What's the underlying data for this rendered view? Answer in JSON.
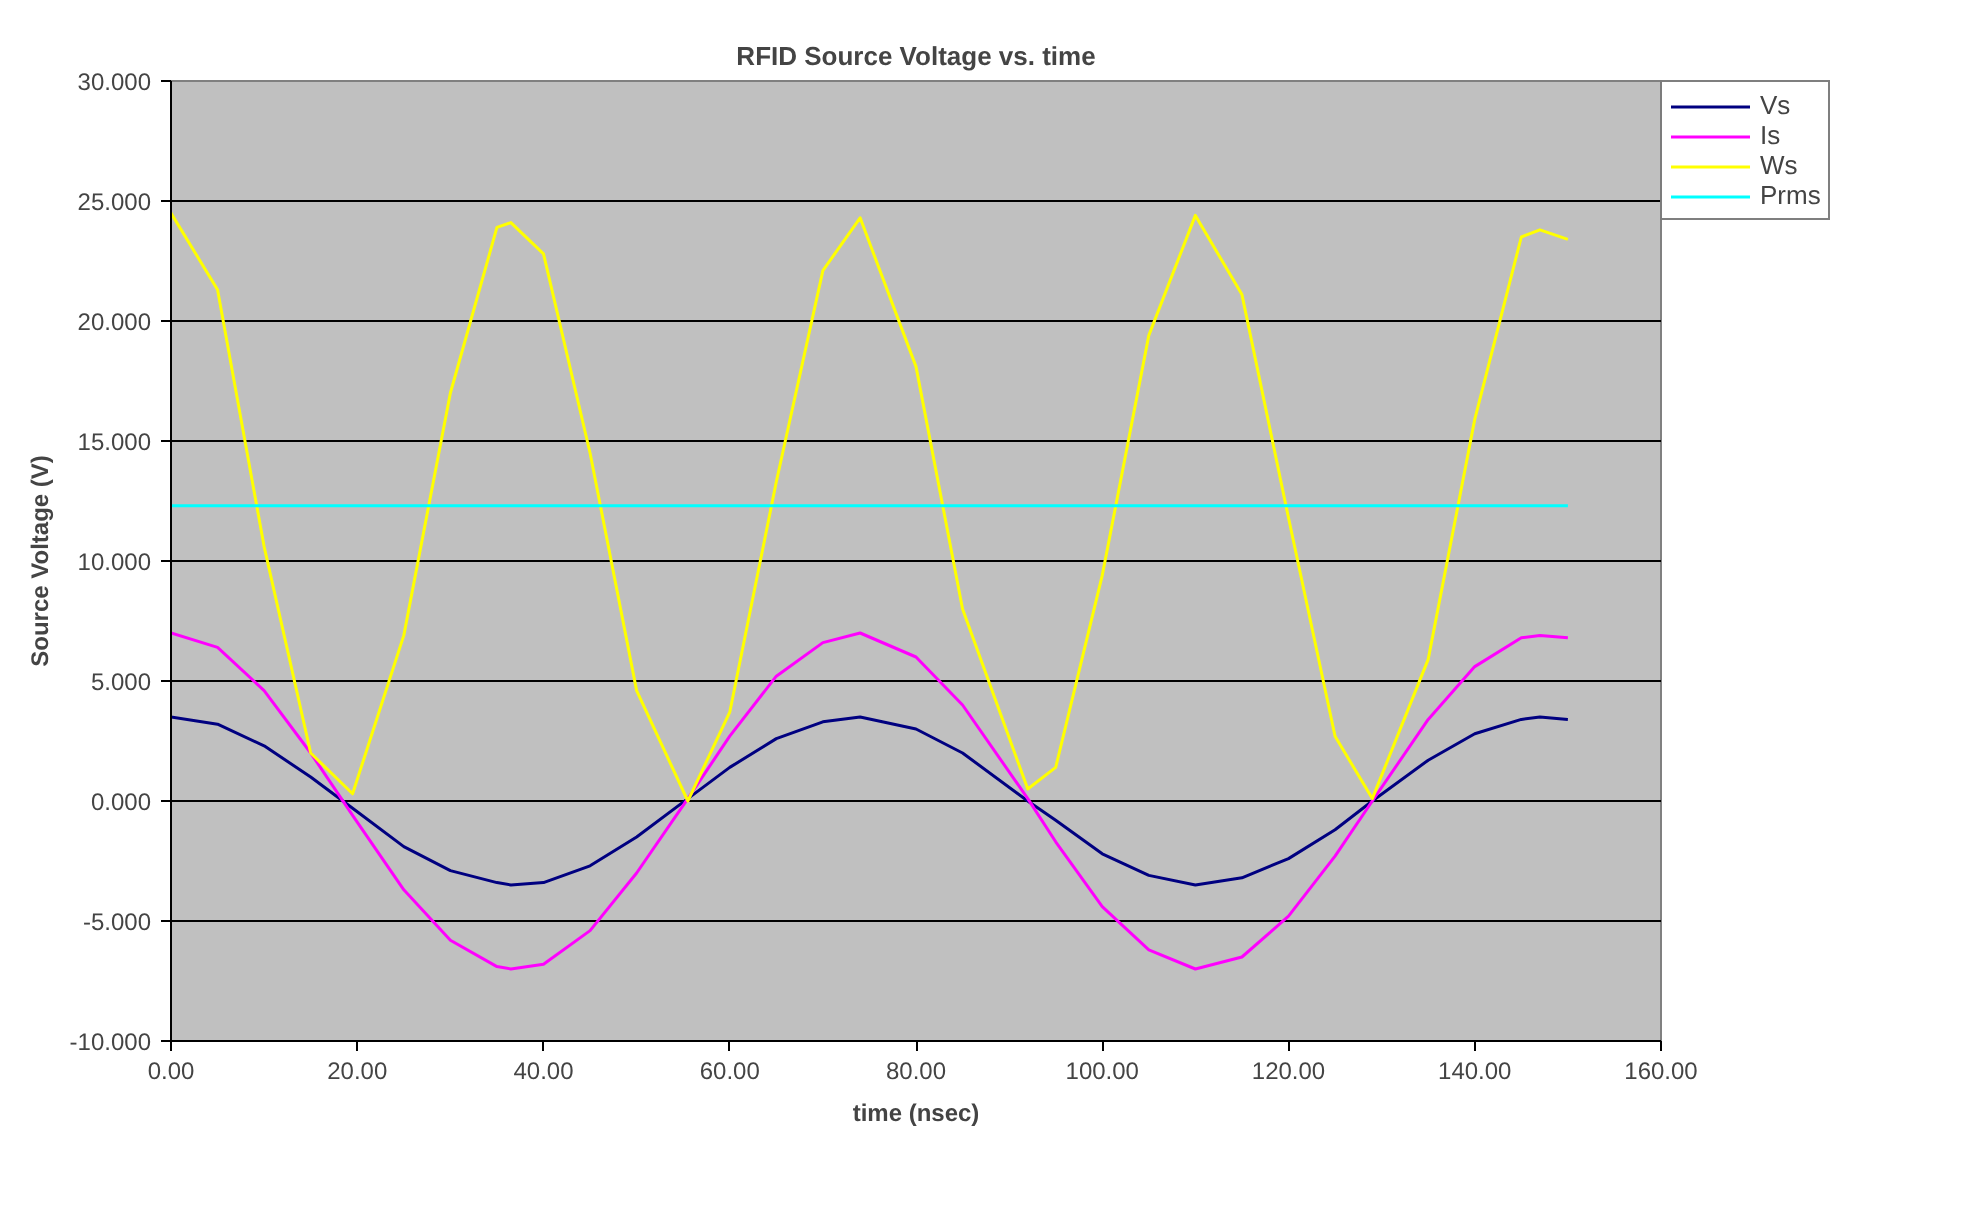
{
  "chart_data": {
    "type": "line",
    "title": "RFID Source Voltage vs. time",
    "xlabel": "time (nsec)",
    "ylabel": "Source Voltage (V)",
    "x": [
      0,
      5,
      10,
      15,
      19.5,
      25,
      30,
      35,
      36.5,
      40,
      45,
      50,
      55.5,
      60,
      65,
      70,
      74,
      80,
      85,
      92,
      95,
      100,
      105,
      110,
      115,
      120,
      125,
      129,
      135,
      140,
      145,
      147,
      150
    ],
    "series": [
      {
        "name": "Vs",
        "color": "#000080",
        "values": [
          3.5,
          3.2,
          2.3,
          1.0,
          -0.3,
          -1.9,
          -2.9,
          -3.4,
          -3.5,
          -3.4,
          -2.7,
          -1.5,
          0.1,
          1.4,
          2.6,
          3.3,
          3.5,
          3.0,
          2.0,
          0.0,
          -0.8,
          -2.2,
          -3.1,
          -3.5,
          -3.2,
          -2.4,
          -1.2,
          0.0,
          1.7,
          2.8,
          3.4,
          3.5,
          3.4
        ]
      },
      {
        "name": "Is",
        "color": "#ff00ff",
        "values": [
          7.0,
          6.4,
          4.6,
          2.0,
          -0.6,
          -3.7,
          -5.8,
          -6.9,
          -7.0,
          -6.8,
          -5.4,
          -3.0,
          0.1,
          2.7,
          5.2,
          6.6,
          7.0,
          6.0,
          4.0,
          0.1,
          -1.7,
          -4.4,
          -6.2,
          -7.0,
          -6.5,
          -4.8,
          -2.3,
          0.0,
          3.4,
          5.6,
          6.8,
          6.9,
          6.8
        ]
      },
      {
        "name": "Ws",
        "color": "#ffff00",
        "values": [
          24.5,
          21.3,
          10.6,
          2.0,
          0.3,
          6.9,
          17.0,
          23.9,
          24.1,
          22.8,
          14.5,
          4.6,
          0.0,
          3.7,
          13.3,
          22.1,
          24.3,
          18.1,
          8.0,
          0.5,
          1.4,
          9.4,
          19.4,
          24.4,
          21.1,
          11.8,
          2.7,
          0.1,
          5.9,
          15.9,
          23.5,
          23.8,
          23.4
        ]
      },
      {
        "name": "Prms",
        "color": "#00ffff",
        "x": [
          0,
          150
        ],
        "values": [
          12.3,
          12.3
        ]
      }
    ],
    "xlim": [
      0,
      160
    ],
    "ylim": [
      -10,
      30
    ],
    "xticks": [
      {
        "value": 0,
        "label": "0.00"
      },
      {
        "value": 20,
        "label": "20.00"
      },
      {
        "value": 40,
        "label": "40.00"
      },
      {
        "value": 60,
        "label": "60.00"
      },
      {
        "value": 80,
        "label": "80.00"
      },
      {
        "value": 100,
        "label": "100.00"
      },
      {
        "value": 120,
        "label": "120.00"
      },
      {
        "value": 140,
        "label": "140.00"
      },
      {
        "value": 160,
        "label": "160.00"
      }
    ],
    "yticks": [
      {
        "value": -10,
        "label": "-10.000"
      },
      {
        "value": -5,
        "label": "-5.000"
      },
      {
        "value": 0,
        "label": "0.000"
      },
      {
        "value": 5,
        "label": "5.000"
      },
      {
        "value": 10,
        "label": "10.000"
      },
      {
        "value": 15,
        "label": "15.000"
      },
      {
        "value": 20,
        "label": "20.000"
      },
      {
        "value": 25,
        "label": "25.000"
      },
      {
        "value": 30,
        "label": "30.000"
      }
    ],
    "grid": "y",
    "legend": "right",
    "marker": "none",
    "line_style": "solid"
  }
}
